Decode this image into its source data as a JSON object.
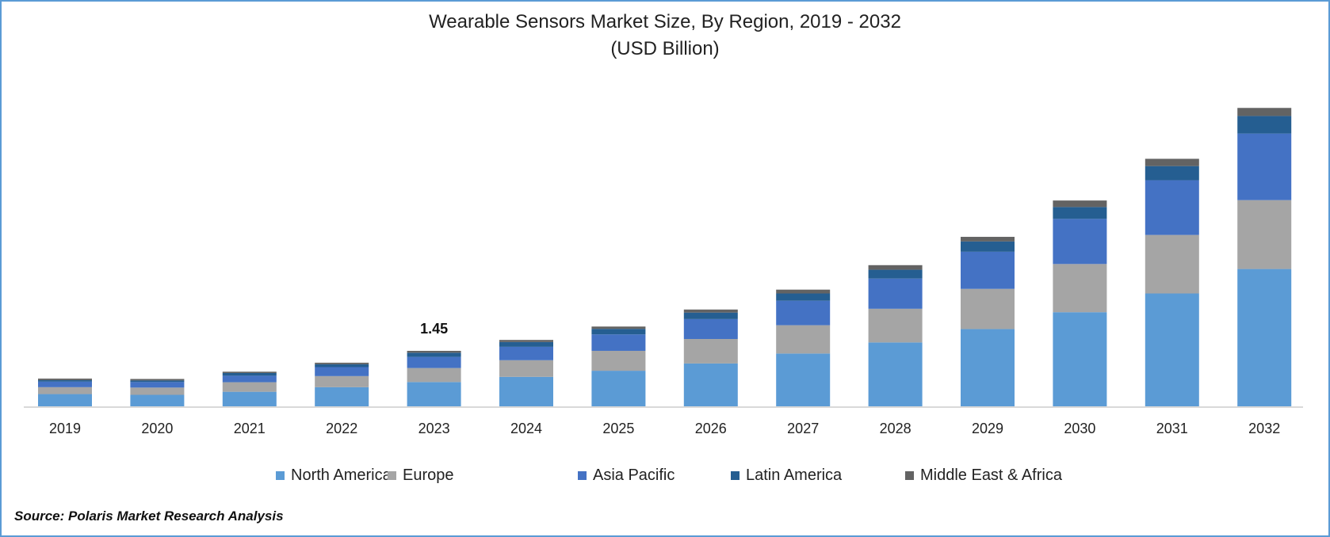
{
  "chart_data": {
    "type": "bar",
    "stacked": true,
    "title": "Wearable Sensors Market Size, By Region, 2019 - 2032",
    "subtitle": "(USD Billion)",
    "categories": [
      "2019",
      "2020",
      "2021",
      "2022",
      "2023",
      "2024",
      "2025",
      "2026",
      "2027",
      "2028",
      "2029",
      "2030",
      "2031",
      "2032"
    ],
    "series": [
      {
        "name": "North America",
        "color": "#5b9bd5",
        "values": [
          0.32,
          0.3,
          0.38,
          0.5,
          0.635,
          0.77,
          0.93,
          1.12,
          1.38,
          1.67,
          2.02,
          2.46,
          2.95,
          3.59
        ]
      },
      {
        "name": "Europe",
        "color": "#a5a5a5",
        "values": [
          0.18,
          0.19,
          0.25,
          0.29,
          0.366,
          0.435,
          0.52,
          0.64,
          0.74,
          0.88,
          1.05,
          1.26,
          1.53,
          1.8
        ]
      },
      {
        "name": "Asia Pacific",
        "color": "#4472c4",
        "values": [
          0.145,
          0.145,
          0.17,
          0.235,
          0.29,
          0.35,
          0.43,
          0.52,
          0.64,
          0.79,
          0.97,
          1.18,
          1.43,
          1.74
        ]
      },
      {
        "name": "Latin America",
        "color": "#255e91",
        "values": [
          0.04,
          0.04,
          0.07,
          0.075,
          0.11,
          0.125,
          0.145,
          0.17,
          0.19,
          0.23,
          0.27,
          0.31,
          0.37,
          0.46
        ]
      },
      {
        "name": "Middle East & Africa",
        "color": "#636363",
        "values": [
          0.04,
          0.04,
          0.035,
          0.04,
          0.049,
          0.055,
          0.06,
          0.08,
          0.1,
          0.12,
          0.12,
          0.17,
          0.19,
          0.21
        ]
      }
    ],
    "annotations": [
      {
        "category": "2023",
        "text": "1.45"
      }
    ],
    "ylim": [
      0,
      8
    ],
    "grid": false,
    "legend": "bottom",
    "xlabel": "",
    "ylabel": ""
  },
  "source": "Source: Polaris Market Research Analysis"
}
